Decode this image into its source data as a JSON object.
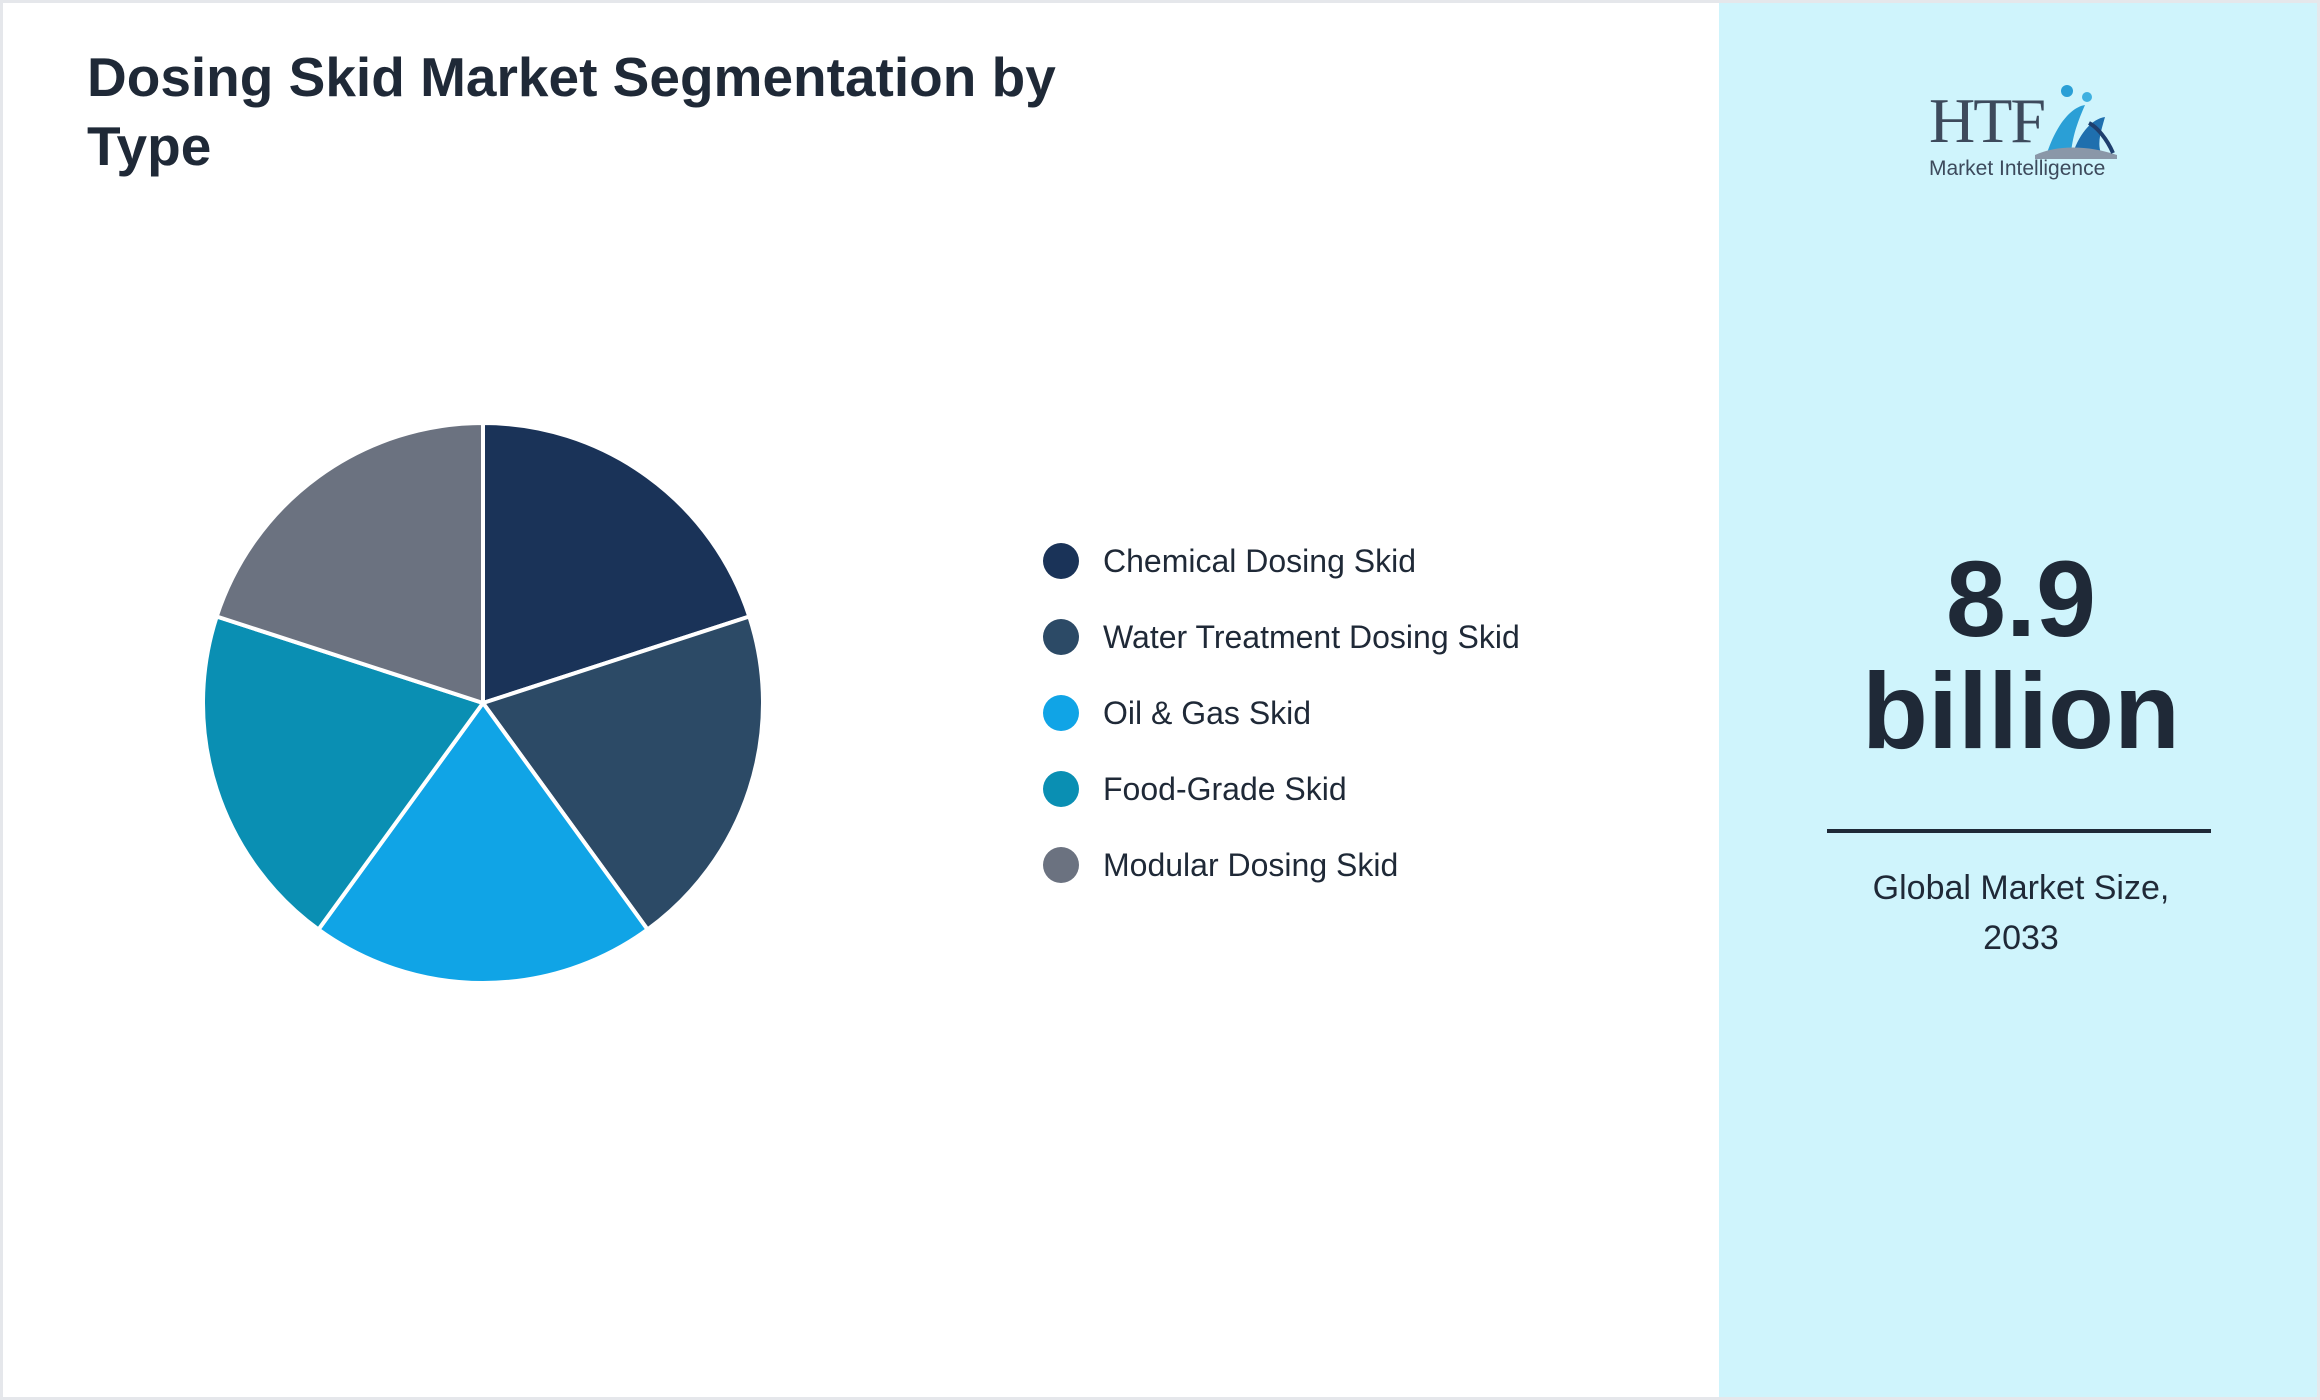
{
  "title": "Dosing Skid Market Segmentation by Type",
  "chart_data": {
    "type": "pie",
    "title": "Dosing Skid Market Segmentation by Type",
    "categories": [
      "Chemical Dosing Skid",
      "Water Treatment Dosing Skid",
      "Oil & Gas Skid",
      "Food-Grade Skid",
      "Modular Dosing Skid"
    ],
    "values": [
      20,
      20,
      20,
      20,
      20
    ],
    "colors": [
      "#1a3358",
      "#2c4a66",
      "#10a4e6",
      "#0a8fb3",
      "#6b7280"
    ],
    "legend": "right"
  },
  "highlight": {
    "value_line1": "8.9",
    "value_line2": "billion",
    "caption_line1": "Global Market Size,",
    "caption_line2": "2033"
  },
  "logo": {
    "name": "HTF",
    "subtitle": "Market Intelligence"
  },
  "colors": {
    "panel_background": "#cff4fc",
    "text": "#1f2937"
  }
}
